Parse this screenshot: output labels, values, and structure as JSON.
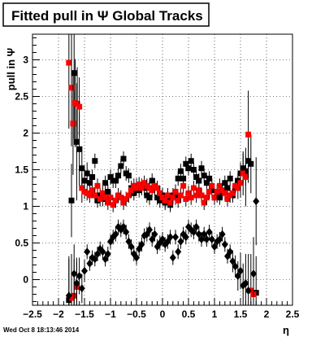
{
  "chart_data": {
    "type": "scatter",
    "title": "Fitted pull in Ψ   Global Tracks",
    "xlabel": "η",
    "ylabel": "pull in Ψ",
    "xlim": [
      -2.5,
      2.5
    ],
    "ylim": [
      -0.35,
      3.35
    ],
    "x_ticks": [
      "−2.5",
      "−2",
      "−1.5",
      "−1",
      "−0.5",
      "0",
      "0.5",
      "1",
      "1.5",
      "2",
      "2.5"
    ],
    "y_ticks": [
      "0",
      "0.5",
      "1",
      "1.5",
      "2",
      "2.5",
      "3"
    ],
    "grid": true,
    "footer": "Wed Oct  8 18:13:46 2014",
    "series": [
      {
        "marker": "square",
        "color": "#000000",
        "points": [
          [
            -1.8,
            -0.28,
            0.6
          ],
          [
            -1.75,
            1.08,
            0.5
          ],
          [
            -1.7,
            2.82,
            0.9
          ],
          [
            -1.65,
            1.88,
            0.8
          ],
          [
            -1.6,
            1.78,
            0.5
          ],
          [
            -1.55,
            1.52,
            0.3
          ],
          [
            -1.5,
            1.35,
            0.15
          ],
          [
            -1.45,
            1.45,
            0.15
          ],
          [
            -1.4,
            1.32,
            0.1
          ],
          [
            -1.35,
            1.4,
            0.1
          ],
          [
            -1.3,
            1.62,
            0.1
          ],
          [
            -1.25,
            1.08,
            0.1
          ],
          [
            -1.2,
            1.15,
            0.1
          ],
          [
            -1.15,
            1.1,
            0.1
          ],
          [
            -1.1,
            1.32,
            0.1
          ],
          [
            -1.05,
            1.2,
            0.1
          ],
          [
            -1.0,
            1.4,
            0.1
          ],
          [
            -0.95,
            1.35,
            0.1
          ],
          [
            -0.9,
            1.35,
            0.1
          ],
          [
            -0.85,
            1.42,
            0.1
          ],
          [
            -0.8,
            1.55,
            0.1
          ],
          [
            -0.75,
            1.65,
            0.1
          ],
          [
            -0.7,
            1.45,
            0.1
          ],
          [
            -0.65,
            1.42,
            0.1
          ],
          [
            -0.6,
            1.25,
            0.1
          ],
          [
            -0.55,
            1.18,
            0.1
          ],
          [
            -0.5,
            1.28,
            0.1
          ],
          [
            -0.45,
            1.22,
            0.1
          ],
          [
            -0.4,
            1.28,
            0.1
          ],
          [
            -0.35,
            1.25,
            0.1
          ],
          [
            -0.3,
            1.15,
            0.1
          ],
          [
            -0.25,
            1.12,
            0.1
          ],
          [
            -0.2,
            1.35,
            0.1
          ],
          [
            -0.15,
            1.25,
            0.1
          ],
          [
            -0.1,
            1.12,
            0.1
          ],
          [
            -0.05,
            1.08,
            0.1
          ],
          [
            0.0,
            1.15,
            0.1
          ],
          [
            0.05,
            1.05,
            0.1
          ],
          [
            0.1,
            1.12,
            0.1
          ],
          [
            0.15,
            1.02,
            0.1
          ],
          [
            0.2,
            1.15,
            0.1
          ],
          [
            0.25,
            1.12,
            0.1
          ],
          [
            0.3,
            1.38,
            0.1
          ],
          [
            0.35,
            1.48,
            0.1
          ],
          [
            0.4,
            1.38,
            0.1
          ],
          [
            0.45,
            1.58,
            0.1
          ],
          [
            0.5,
            1.52,
            0.1
          ],
          [
            0.55,
            1.62,
            0.1
          ],
          [
            0.6,
            1.5,
            0.1
          ],
          [
            0.65,
            1.4,
            0.1
          ],
          [
            0.7,
            1.35,
            0.1
          ],
          [
            0.75,
            1.52,
            0.1
          ],
          [
            0.8,
            1.42,
            0.1
          ],
          [
            0.85,
            1.32,
            0.1
          ],
          [
            0.9,
            1.38,
            0.1
          ],
          [
            0.95,
            1.22,
            0.1
          ],
          [
            1.0,
            1.12,
            0.1
          ],
          [
            1.05,
            1.15,
            0.1
          ],
          [
            1.1,
            1.12,
            0.1
          ],
          [
            1.15,
            1.2,
            0.1
          ],
          [
            1.2,
            1.32,
            0.1
          ],
          [
            1.25,
            1.25,
            0.1
          ],
          [
            1.3,
            1.38,
            0.1
          ],
          [
            1.35,
            1.15,
            0.1
          ],
          [
            1.4,
            1.25,
            0.1
          ],
          [
            1.45,
            1.35,
            0.1
          ],
          [
            1.5,
            1.45,
            0.15
          ],
          [
            1.55,
            1.52,
            0.2
          ],
          [
            1.6,
            1.48,
            0.2
          ],
          [
            1.65,
            1.62,
            0.3
          ],
          [
            1.7,
            1.58,
            0.4
          ],
          [
            1.8,
            -0.18,
            0.5
          ]
        ]
      },
      {
        "marker": "square",
        "color": "#ff0000",
        "points": [
          [
            -1.8,
            2.96,
            0.9
          ],
          [
            -1.75,
            2.62,
            0.8
          ],
          [
            -1.72,
            2.13,
            0.7
          ],
          [
            -1.68,
            2.41,
            0.6
          ],
          [
            -1.64,
            2.4,
            0.5
          ],
          [
            -1.6,
            2.36,
            0.4
          ],
          [
            -1.7,
            -0.22,
            0.5
          ],
          [
            -1.75,
            -0.25,
            0.6
          ],
          [
            -1.65,
            -0.1,
            0.4
          ],
          [
            -1.55,
            1.25,
            0.2
          ],
          [
            -1.5,
            1.2,
            0.1
          ],
          [
            -1.45,
            1.18,
            0.1
          ],
          [
            -1.4,
            1.15,
            0.1
          ],
          [
            -1.35,
            1.22,
            0.1
          ],
          [
            -1.3,
            1.15,
            0.1
          ],
          [
            -1.25,
            1.28,
            0.1
          ],
          [
            -1.2,
            1.1,
            0.1
          ],
          [
            -1.15,
            1.18,
            0.1
          ],
          [
            -1.1,
            1.12,
            0.1
          ],
          [
            -1.05,
            1.05,
            0.1
          ],
          [
            -1.0,
            1.12,
            0.1
          ],
          [
            -0.95,
            1.02,
            0.1
          ],
          [
            -0.9,
            1.08,
            0.1
          ],
          [
            -0.85,
            1.15,
            0.1
          ],
          [
            -0.8,
            1.12,
            0.1
          ],
          [
            -0.75,
            1.05,
            0.1
          ],
          [
            -0.7,
            1.1,
            0.1
          ],
          [
            -0.65,
            1.15,
            0.1
          ],
          [
            -0.6,
            1.22,
            0.1
          ],
          [
            -0.55,
            1.28,
            0.1
          ],
          [
            -0.5,
            1.25,
            0.1
          ],
          [
            -0.45,
            1.3,
            0.1
          ],
          [
            -0.4,
            1.25,
            0.1
          ],
          [
            -0.35,
            1.32,
            0.1
          ],
          [
            -0.3,
            1.28,
            0.1
          ],
          [
            -0.25,
            1.25,
            0.1
          ],
          [
            -0.2,
            1.22,
            0.1
          ],
          [
            -0.15,
            1.28,
            0.1
          ],
          [
            -0.1,
            1.25,
            0.1
          ],
          [
            -0.05,
            1.18,
            0.1
          ],
          [
            0.0,
            1.12,
            0.1
          ],
          [
            0.05,
            1.08,
            0.1
          ],
          [
            0.1,
            1.15,
            0.1
          ],
          [
            0.15,
            1.05,
            0.1
          ],
          [
            0.2,
            1.12,
            0.1
          ],
          [
            0.25,
            1.2,
            0.1
          ],
          [
            0.3,
            1.08,
            0.1
          ],
          [
            0.35,
            1.15,
            0.1
          ],
          [
            0.4,
            1.28,
            0.1
          ],
          [
            0.45,
            1.1,
            0.1
          ],
          [
            0.5,
            1.18,
            0.1
          ],
          [
            0.55,
            1.12,
            0.1
          ],
          [
            0.6,
            1.25,
            0.1
          ],
          [
            0.65,
            1.15,
            0.1
          ],
          [
            0.7,
            1.22,
            0.1
          ],
          [
            0.75,
            1.15,
            0.1
          ],
          [
            0.8,
            1.05,
            0.1
          ],
          [
            0.85,
            1.12,
            0.1
          ],
          [
            0.9,
            1.2,
            0.1
          ],
          [
            0.95,
            1.28,
            0.1
          ],
          [
            1.0,
            1.12,
            0.1
          ],
          [
            1.05,
            1.2,
            0.1
          ],
          [
            1.1,
            1.28,
            0.1
          ],
          [
            1.15,
            1.22,
            0.1
          ],
          [
            1.2,
            1.18,
            0.1
          ],
          [
            1.25,
            1.1,
            0.1
          ],
          [
            1.3,
            1.15,
            0.1
          ],
          [
            1.35,
            1.18,
            0.1
          ],
          [
            1.4,
            1.28,
            0.1
          ],
          [
            1.45,
            1.25,
            0.15
          ],
          [
            1.5,
            1.32,
            0.2
          ],
          [
            1.55,
            1.45,
            0.3
          ],
          [
            1.6,
            1.4,
            0.4
          ],
          [
            1.65,
            1.98,
            0.6
          ],
          [
            1.7,
            -0.15,
            0.5
          ],
          [
            1.75,
            -0.2,
            0.6
          ]
        ]
      },
      {
        "marker": "diamond",
        "color": "#000000",
        "points": [
          [
            -1.8,
            -0.22,
            0.5
          ],
          [
            -1.7,
            0.08,
            0.4
          ],
          [
            -1.65,
            -0.05,
            0.3
          ],
          [
            -1.6,
            0.05,
            0.25
          ],
          [
            -1.55,
            -0.12,
            0.2
          ],
          [
            -1.5,
            0.12,
            0.15
          ],
          [
            -1.45,
            0.38,
            0.1
          ],
          [
            -1.4,
            0.22,
            0.1
          ],
          [
            -1.35,
            0.3,
            0.1
          ],
          [
            -1.3,
            0.28,
            0.1
          ],
          [
            -1.25,
            0.35,
            0.1
          ],
          [
            -1.2,
            0.42,
            0.1
          ],
          [
            -1.15,
            0.38,
            0.1
          ],
          [
            -1.1,
            0.28,
            0.1
          ],
          [
            -1.05,
            0.35,
            0.1
          ],
          [
            -1.0,
            0.52,
            0.1
          ],
          [
            -0.95,
            0.58,
            0.1
          ],
          [
            -0.9,
            0.62,
            0.1
          ],
          [
            -0.85,
            0.72,
            0.1
          ],
          [
            -0.8,
            0.68,
            0.1
          ],
          [
            -0.75,
            0.72,
            0.1
          ],
          [
            -0.7,
            0.65,
            0.1
          ],
          [
            -0.65,
            0.52,
            0.1
          ],
          [
            -0.6,
            0.45,
            0.1
          ],
          [
            -0.55,
            0.35,
            0.1
          ],
          [
            -0.5,
            0.3,
            0.1
          ],
          [
            -0.45,
            0.42,
            0.1
          ],
          [
            -0.4,
            0.48,
            0.1
          ],
          [
            -0.35,
            0.6,
            0.1
          ],
          [
            -0.3,
            0.62,
            0.1
          ],
          [
            -0.25,
            0.68,
            0.1
          ],
          [
            -0.2,
            0.55,
            0.1
          ],
          [
            -0.15,
            0.62,
            0.1
          ],
          [
            -0.1,
            0.45,
            0.1
          ],
          [
            -0.05,
            0.5,
            0.1
          ],
          [
            0.0,
            0.55,
            0.1
          ],
          [
            0.05,
            0.48,
            0.1
          ],
          [
            0.1,
            0.52,
            0.1
          ],
          [
            0.15,
            0.58,
            0.1
          ],
          [
            0.2,
            0.3,
            0.1
          ],
          [
            0.25,
            0.58,
            0.1
          ],
          [
            0.3,
            0.38,
            0.1
          ],
          [
            0.35,
            0.52,
            0.1
          ],
          [
            0.4,
            0.62,
            0.1
          ],
          [
            0.45,
            0.58,
            0.1
          ],
          [
            0.5,
            0.72,
            0.1
          ],
          [
            0.55,
            0.68,
            0.1
          ],
          [
            0.6,
            0.65,
            0.1
          ],
          [
            0.65,
            0.72,
            0.1
          ],
          [
            0.7,
            0.62,
            0.1
          ],
          [
            0.75,
            0.55,
            0.1
          ],
          [
            0.8,
            0.62,
            0.1
          ],
          [
            0.85,
            0.55,
            0.1
          ],
          [
            0.9,
            0.65,
            0.1
          ],
          [
            0.95,
            0.55,
            0.1
          ],
          [
            1.0,
            0.45,
            0.1
          ],
          [
            1.05,
            0.52,
            0.1
          ],
          [
            1.1,
            0.55,
            0.1
          ],
          [
            1.15,
            0.62,
            0.1
          ],
          [
            1.2,
            0.48,
            0.1
          ],
          [
            1.25,
            0.32,
            0.1
          ],
          [
            1.3,
            0.38,
            0.1
          ],
          [
            1.35,
            0.25,
            0.15
          ],
          [
            1.4,
            0.18,
            0.15
          ],
          [
            1.45,
            0.05,
            0.2
          ],
          [
            1.5,
            0.12,
            0.25
          ],
          [
            1.55,
            -0.08,
            0.3
          ],
          [
            1.6,
            -0.05,
            0.4
          ],
          [
            1.65,
            -0.15,
            0.5
          ],
          [
            1.75,
            0.08,
            0.5
          ],
          [
            1.8,
            1.07,
            0.6
          ]
        ]
      }
    ]
  }
}
